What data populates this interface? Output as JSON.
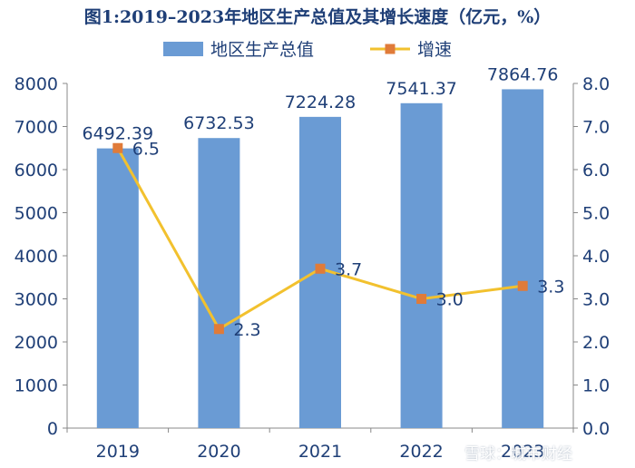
{
  "chart_data": {
    "type": "bar",
    "title": "图1:2019–2023年地区生产总值及其增长速度（亿元，%）",
    "categories": [
      "2019",
      "2020",
      "2021",
      "2022",
      "2023"
    ],
    "series": [
      {
        "name": "地区生产总值",
        "kind": "bar",
        "axis": "left",
        "values": [
          6492.39,
          6732.53,
          7224.28,
          7541.37,
          7864.76
        ],
        "labels": [
          "6492.39",
          "6732.53",
          "7224.28",
          "7541.37",
          "7864.76"
        ]
      },
      {
        "name": "增速",
        "kind": "line",
        "axis": "right",
        "values": [
          6.5,
          2.3,
          3.7,
          3.0,
          3.3
        ],
        "labels": [
          "6.5",
          "2.3",
          "3.7",
          "3.0",
          "3.3"
        ]
      }
    ],
    "ylim_left": [
      0,
      8000
    ],
    "yticks_left": [
      "0",
      "1000",
      "2000",
      "3000",
      "4000",
      "5000",
      "6000",
      "7000",
      "8000"
    ],
    "ylim_right": [
      0,
      8
    ],
    "yticks_right": [
      "0.0",
      "1.0",
      "2.0",
      "3.0",
      "4.0",
      "5.0",
      "6.0",
      "7.0",
      "8.0"
    ],
    "grid": false,
    "legend_position": "top-center",
    "colors": {
      "bar": "#6a9bd4",
      "line": "#f2c12e",
      "marker": "#e07b39",
      "text": "#1f3f77",
      "axis": "#888888"
    }
  },
  "watermark": "雪球：城市财经"
}
